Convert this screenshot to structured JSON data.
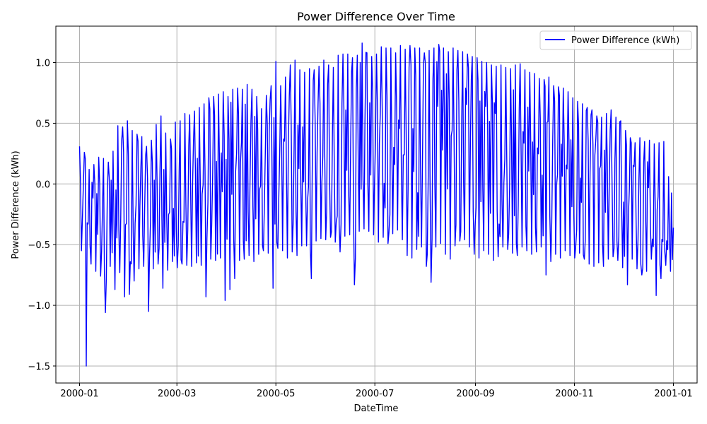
{
  "chart_data": {
    "type": "line",
    "title": "Power Difference Over Time",
    "xlabel": "DateTime",
    "ylabel": "Power Difference (kWh)",
    "xlim": [
      -14.6,
      380.6
    ],
    "ylim": [
      -1.64,
      1.3
    ],
    "grid": true,
    "legend_position": "top-right",
    "x_ticks": [
      {
        "value": 0,
        "label": "2000-01"
      },
      {
        "value": 60,
        "label": "2000-03"
      },
      {
        "value": 121,
        "label": "2000-05"
      },
      {
        "value": 182,
        "label": "2000-07"
      },
      {
        "value": 244,
        "label": "2000-09"
      },
      {
        "value": 305,
        "label": "2000-11"
      },
      {
        "value": 366,
        "label": "2001-01"
      }
    ],
    "y_ticks": [
      {
        "value": -1.5,
        "label": "−1.5"
      },
      {
        "value": -1.0,
        "label": "−1.0"
      },
      {
        "value": -0.5,
        "label": "−0.5"
      },
      {
        "value": 0.0,
        "label": "0.0"
      },
      {
        "value": 0.5,
        "label": "0.5"
      },
      {
        "value": 1.0,
        "label": "1.0"
      }
    ],
    "series": [
      {
        "name": "Power Difference (kWh)",
        "color": "#0000ff",
        "x_start": 0,
        "x_step": 1,
        "envelope_max": [
          0.31,
          0.26,
          0.12,
          0.16,
          0.22,
          0.21,
          0.18,
          0.27,
          0.48,
          0.47,
          0.52,
          0.44,
          0.41,
          0.39,
          0.31,
          0.36,
          0.49,
          0.56,
          0.42,
          0.37,
          0.51,
          0.52,
          0.58,
          0.57,
          0.6,
          0.63,
          0.66,
          0.71,
          0.72,
          0.74,
          0.76,
          0.72,
          0.78,
          0.79,
          0.78,
          0.82,
          0.78,
          0.72,
          0.62,
          0.73,
          0.81,
          1.01,
          0.81,
          0.88,
          0.98,
          1.02,
          0.94,
          0.92,
          0.95,
          0.94,
          0.97,
          1.02,
          0.98,
          0.96,
          1.06,
          1.07,
          1.07,
          1.04,
          1.06,
          1.16,
          1.08,
          1.05,
          1.07,
          1.13,
          1.12,
          1.12,
          1.08,
          1.14,
          1.11,
          1.14,
          1.12,
          1.12,
          1.08,
          1.1,
          1.12,
          1.15,
          1.12,
          1.09,
          1.12,
          1.1,
          1.09,
          1.07,
          1.05,
          1.04,
          1.01,
          1.0,
          0.98,
          0.97,
          0.98,
          0.96,
          0.95,
          0.98,
          0.99,
          0.94,
          0.92,
          0.91,
          0.87,
          0.86,
          0.88,
          0.81,
          0.8,
          0.79,
          0.76,
          0.71,
          0.68,
          0.66,
          0.63,
          0.61,
          0.56,
          0.55,
          0.58,
          0.61,
          0.55,
          0.52,
          0.44,
          0.38,
          0.34,
          0.38,
          0.35,
          0.36,
          0.33,
          0.34,
          0.35,
          0.06
        ],
        "envelope_min": [
          -0.55,
          -1.5,
          -0.66,
          -0.72,
          -0.76,
          -1.06,
          -0.68,
          -0.87,
          -0.73,
          -0.93,
          -0.91,
          -0.8,
          -0.7,
          -0.68,
          -1.05,
          -0.7,
          -0.66,
          -0.86,
          -0.71,
          -0.64,
          -0.69,
          -0.66,
          -0.67,
          -0.68,
          -0.65,
          -0.67,
          -0.93,
          -0.62,
          -0.63,
          -0.61,
          -0.96,
          -0.87,
          -0.78,
          -0.63,
          -0.62,
          -0.59,
          -0.64,
          -0.58,
          -0.55,
          -0.57,
          -0.86,
          -0.53,
          -0.55,
          -0.61,
          -0.56,
          -0.59,
          -0.51,
          -0.51,
          -0.78,
          -0.47,
          -0.45,
          -0.46,
          -0.44,
          -0.48,
          -0.56,
          -0.43,
          -0.42,
          -0.83,
          -0.39,
          -0.37,
          -0.39,
          -0.42,
          -0.48,
          -0.44,
          -0.49,
          -0.41,
          -0.38,
          -0.46,
          -0.59,
          -0.61,
          -0.54,
          -0.52,
          -0.68,
          -0.81,
          -0.52,
          -0.49,
          -0.58,
          -0.62,
          -0.51,
          -0.47,
          -0.46,
          -0.52,
          -0.58,
          -0.61,
          -0.55,
          -0.58,
          -0.63,
          -0.6,
          -0.52,
          -0.54,
          -0.57,
          -0.59,
          -0.52,
          -0.55,
          -0.58,
          -0.56,
          -0.52,
          -0.75,
          -0.64,
          -0.58,
          -0.61,
          -0.55,
          -0.59,
          -0.61,
          -0.57,
          -0.62,
          -0.66,
          -0.68,
          -0.65,
          -0.68,
          -0.62,
          -0.6,
          -0.63,
          -0.69,
          -0.83,
          -0.62,
          -0.7,
          -0.75,
          -0.72,
          -0.62,
          -0.92,
          -0.78,
          -0.67,
          -0.72
        ]
      }
    ]
  }
}
